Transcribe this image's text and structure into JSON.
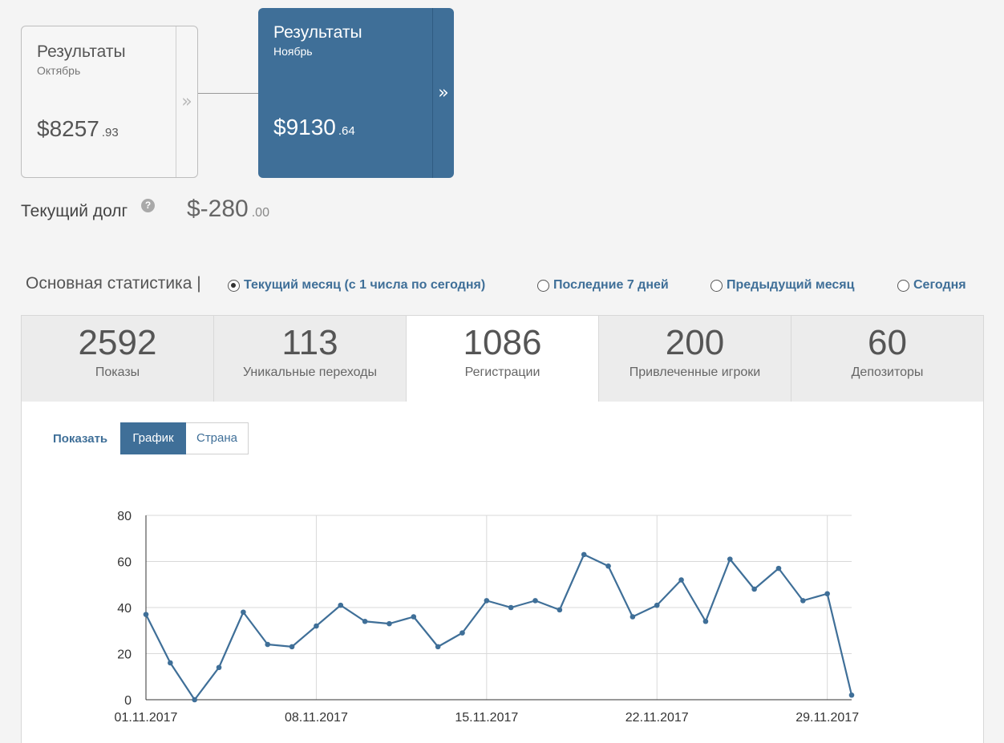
{
  "results": {
    "previous": {
      "title": "Результаты",
      "month": "Октябрь",
      "amount": "$8257",
      "cents": ".93"
    },
    "current": {
      "title": "Результаты",
      "month": "Ноябрь",
      "amount": "$9130",
      "cents": ".64"
    },
    "arrow_glyph": "»"
  },
  "debt": {
    "label": "Текущий долг",
    "help_glyph": "?",
    "amount": "$-280",
    "cents": ".00"
  },
  "stats": {
    "title": "Основная статистика |",
    "periods": [
      {
        "label": "Текущий месяц (с 1 числа по сегодня)",
        "selected": true
      },
      {
        "label": "Последние 7 дней",
        "selected": false
      },
      {
        "label": "Предыдущий месяц",
        "selected": false
      },
      {
        "label": "Сегодня",
        "selected": false
      }
    ],
    "metrics": [
      {
        "value": "2592",
        "label": "Показы"
      },
      {
        "value": "113",
        "label": "Уникальные переходы"
      },
      {
        "value": "1086",
        "label": "Регистрации",
        "active": true
      },
      {
        "value": "200",
        "label": "Привлеченные игроки"
      },
      {
        "value": "60",
        "label": "Депозиторы"
      }
    ]
  },
  "view": {
    "show_label": "Показать",
    "graph_label": "График",
    "country_label": "Страна",
    "active": "graph"
  },
  "colors": {
    "accent": "#3f6f98",
    "line": "#3f6f98",
    "grid": "#d9d9d9"
  },
  "chart_data": {
    "type": "line",
    "x": [
      "01.11.2017",
      "02.11.2017",
      "03.11.2017",
      "04.11.2017",
      "05.11.2017",
      "06.11.2017",
      "07.11.2017",
      "08.11.2017",
      "09.11.2017",
      "10.11.2017",
      "11.11.2017",
      "12.11.2017",
      "13.11.2017",
      "14.11.2017",
      "15.11.2017",
      "16.11.2017",
      "17.11.2017",
      "18.11.2017",
      "19.11.2017",
      "20.11.2017",
      "21.11.2017",
      "22.11.2017",
      "23.11.2017",
      "24.11.2017",
      "25.11.2017",
      "26.11.2017",
      "27.11.2017",
      "28.11.2017",
      "29.11.2017",
      "30.11.2017"
    ],
    "x_tick_labels": [
      "01.11.2017",
      "08.11.2017",
      "15.11.2017",
      "22.11.2017",
      "29.11.2017"
    ],
    "series": [
      {
        "values": [
          37,
          16,
          0,
          14,
          38,
          24,
          23,
          32,
          41,
          34,
          33,
          36,
          23,
          29,
          43,
          40,
          43,
          39,
          63,
          58,
          36,
          41,
          52,
          34,
          61,
          48,
          57,
          43,
          46,
          2
        ]
      }
    ],
    "ylim": [
      0,
      80
    ],
    "y_ticks": [
      0,
      20,
      40,
      60,
      80
    ],
    "grid": true,
    "title": "",
    "xlabel": "",
    "ylabel": ""
  }
}
